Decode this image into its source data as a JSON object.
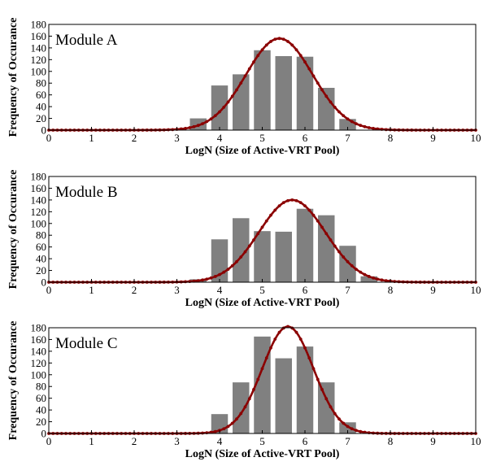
{
  "chart_data": [
    {
      "type": "bar",
      "title": "Module A",
      "xlabel": "LogN (Size of Active-VRT Pool)",
      "ylabel": "Frequency of Occurance",
      "xlim": [
        0,
        10
      ],
      "ylim": [
        0,
        180
      ],
      "xticks": [
        "0",
        "1",
        "2",
        "3",
        "4",
        "5",
        "6",
        "7",
        "8",
        "9",
        "10"
      ],
      "yticks": [
        "0",
        "20",
        "40",
        "60",
        "80",
        "100",
        "120",
        "140",
        "160",
        "180"
      ],
      "bar_color": "#808080",
      "curve_color": "#8b0000",
      "series": [
        {
          "type": "bar",
          "x": [
            3.5,
            4.0,
            4.5,
            5.0,
            5.5,
            6.0,
            6.5,
            7.0
          ],
          "values": [
            20,
            76,
            95,
            136,
            126,
            125,
            72,
            19
          ]
        },
        {
          "type": "line",
          "curve": "gaussian",
          "peak": 156,
          "mean": 5.4,
          "sd": 0.78
        }
      ]
    },
    {
      "type": "bar",
      "title": "Module B",
      "xlabel": "LogN (Size of Active-VRT Pool)",
      "ylabel": "Frequency of Occurance",
      "xlim": [
        0,
        10
      ],
      "ylim": [
        0,
        180
      ],
      "xticks": [
        "0",
        "1",
        "2",
        "3",
        "4",
        "5",
        "6",
        "7",
        "8",
        "9",
        "10"
      ],
      "yticks": [
        "0",
        "20",
        "40",
        "60",
        "80",
        "100",
        "120",
        "140",
        "160",
        "180"
      ],
      "bar_color": "#808080",
      "curve_color": "#8b0000",
      "series": [
        {
          "type": "bar",
          "x": [
            3.5,
            4.0,
            4.5,
            5.0,
            5.5,
            6.0,
            6.5,
            7.0,
            7.5
          ],
          "values": [
            5,
            73,
            109,
            87,
            86,
            125,
            114,
            62,
            10
          ]
        },
        {
          "type": "line",
          "curve": "gaussian",
          "peak": 140,
          "mean": 5.7,
          "sd": 0.78
        }
      ]
    },
    {
      "type": "bar",
      "title": "Module C",
      "xlabel": "LogN (Size of Active-VRT Pool)",
      "ylabel": "Frequency of Occurance",
      "xlim": [
        0,
        10
      ],
      "ylim": [
        0,
        180
      ],
      "xticks": [
        "0",
        "1",
        "2",
        "3",
        "4",
        "5",
        "6",
        "7",
        "8",
        "9",
        "10"
      ],
      "yticks": [
        "0",
        "20",
        "40",
        "60",
        "80",
        "100",
        "120",
        "140",
        "160",
        "180"
      ],
      "bar_color": "#808080",
      "curve_color": "#8b0000",
      "series": [
        {
          "type": "bar",
          "x": [
            4.0,
            4.5,
            5.0,
            5.5,
            6.0,
            6.5,
            7.0
          ],
          "values": [
            33,
            87,
            165,
            128,
            148,
            87,
            19
          ]
        },
        {
          "type": "line",
          "curve": "gaussian",
          "peak": 182,
          "mean": 5.6,
          "sd": 0.6
        }
      ]
    }
  ]
}
